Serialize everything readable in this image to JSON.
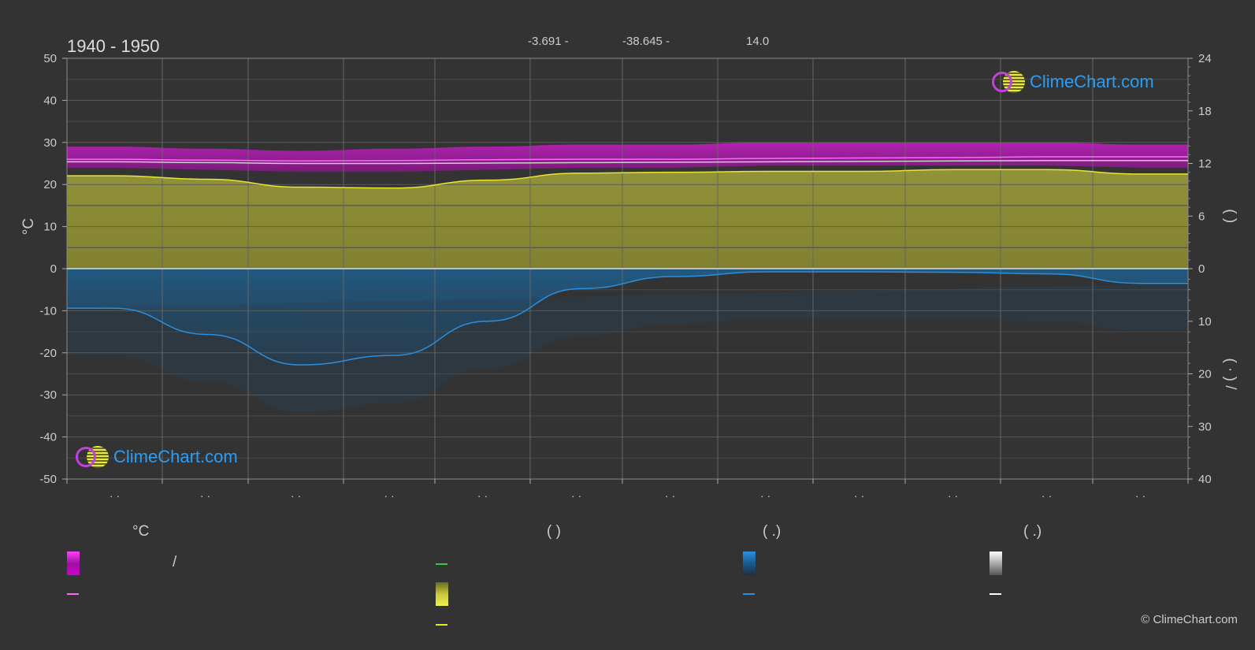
{
  "header": {
    "period": "1940 - 1950",
    "coords": [
      "-3.691 -",
      "-38.645 -",
      "14.0"
    ]
  },
  "chart_data": {
    "type": "area",
    "x": [
      1,
      2,
      3,
      4,
      5,
      6,
      7,
      8,
      9,
      10,
      11,
      12
    ],
    "x_tick_labels": [
      "· ·",
      "· ·",
      "· ·",
      "· ·",
      "· ·",
      "· ·",
      "· ·",
      "· ·",
      "· ·",
      "· ·",
      "· ·",
      "· ·"
    ],
    "left_axis": {
      "label": "°C",
      "range": [
        -50,
        50
      ],
      "ticks": [
        50,
        40,
        30,
        20,
        10,
        0,
        -10,
        -20,
        -30,
        -40,
        -50
      ]
    },
    "right_axis_top": {
      "label": "(    )",
      "range": [
        0,
        24
      ],
      "ticks": [
        24,
        18,
        12,
        6,
        0
      ]
    },
    "right_axis_bottom": {
      "label": "(  ·  )  /",
      "range": [
        0,
        40
      ],
      "ticks": [
        0,
        10,
        20,
        30,
        40
      ]
    },
    "series": [
      {
        "key": "temp_mean",
        "color": "#ff66ff",
        "values": [
          26.0,
          25.8,
          25.6,
          25.7,
          25.9,
          26.0,
          26.0,
          26.2,
          26.3,
          26.4,
          26.6,
          26.6
        ]
      },
      {
        "key": "temp_secondary",
        "color": "#cfcfcf",
        "values": [
          25.4,
          25.2,
          25.0,
          25.0,
          25.1,
          25.2,
          25.3,
          25.4,
          25.5,
          25.6,
          25.7,
          25.7
        ]
      },
      {
        "key": "temp_range_max",
        "values": [
          29.0,
          28.5,
          28.0,
          28.5,
          29.0,
          29.5,
          29.5,
          30.0,
          30.0,
          30.0,
          30.0,
          29.5
        ]
      },
      {
        "key": "temp_range_min",
        "values": [
          24.0,
          23.5,
          23.0,
          23.0,
          23.5,
          24.0,
          24.0,
          24.5,
          24.5,
          24.5,
          24.5,
          24.0
        ]
      },
      {
        "key": "sunshine",
        "color": "#e6e633",
        "axis": "right_top",
        "values": [
          10.6,
          10.2,
          9.3,
          9.2,
          10.1,
          10.9,
          11.0,
          11.1,
          11.1,
          11.3,
          11.3,
          10.8
        ]
      },
      {
        "key": "precipitation",
        "color": "#2a8fe0",
        "axis": "right_bottom",
        "values": [
          7.5,
          12.5,
          18.3,
          16.5,
          10.0,
          3.8,
          1.5,
          0.6,
          0.6,
          0.7,
          1.0,
          2.8
        ]
      }
    ]
  },
  "legend": {
    "headers": [
      "°C",
      "(          )",
      "(    .)",
      "(    .)"
    ],
    "slash": "/"
  },
  "colors": {
    "background": "#333333",
    "grid": "#555555",
    "magenta": "#d51fd5",
    "yellow": "#e6e633",
    "blue": "#2a8fe0",
    "green": "#33cc33"
  },
  "logo": {
    "text": "ClimeChart.com"
  },
  "copyright": "© ClimeChart.com"
}
